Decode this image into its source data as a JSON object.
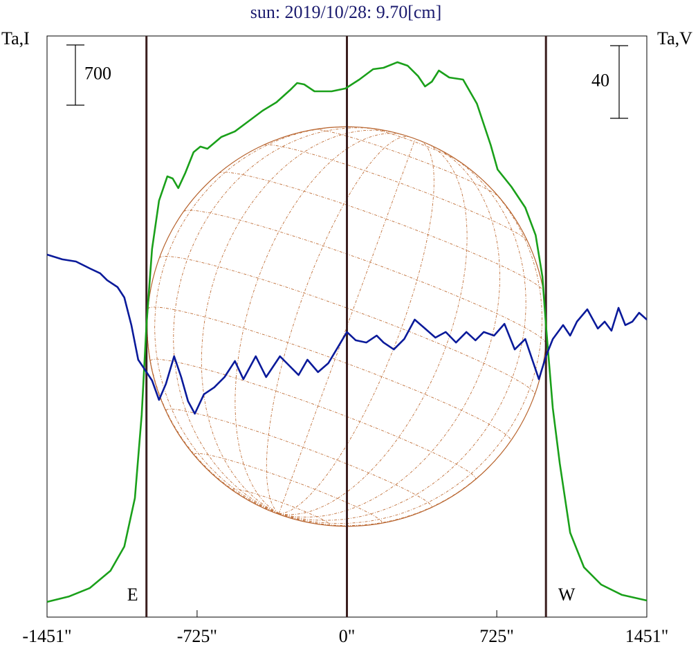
{
  "chart_data": {
    "type": "line",
    "title": "sun: 2019/10/28: 9.70[cm]",
    "ylabel": "Ta,I",
    "y2label": "Ta,V",
    "xlim": [
      -1451,
      1451
    ],
    "xticks": [
      {
        "value": -1451,
        "label": "-1451\""
      },
      {
        "value": -725,
        "label": "-725\""
      },
      {
        "value": 0,
        "label": "0\""
      },
      {
        "value": 725,
        "label": "725\""
      },
      {
        "value": 1451,
        "label": "1451\""
      }
    ],
    "ylim": [
      0,
      6760
    ],
    "y2lim": [
      -160,
      160
    ],
    "scale_bars": [
      {
        "value": 700,
        "axis": "y"
      },
      {
        "value": 40,
        "axis": "y2"
      }
    ],
    "markers": [
      {
        "x": -970,
        "label": "E"
      },
      {
        "x": 0
      },
      {
        "x": 963,
        "label": "W"
      }
    ],
    "series": [
      {
        "name": "I",
        "color": "#1aa01a",
        "x": [
          -1451,
          -1344,
          -1244,
          -1144,
          -1077,
          -1026,
          -993,
          -970,
          -943,
          -909,
          -869,
          -843,
          -816,
          -782,
          -742,
          -709,
          -675,
          -608,
          -542,
          -475,
          -408,
          -341,
          -274,
          -241,
          -207,
          -157,
          -74,
          -7,
          60,
          127,
          177,
          244,
          294,
          344,
          378,
          411,
          445,
          495,
          562,
          629,
          696,
          729,
          796,
          863,
          913,
          946,
          963,
          996,
          1030,
          1080,
          1147,
          1230,
          1331,
          1451
        ],
        "values": [
          177,
          241,
          338,
          539,
          821,
          1384,
          2350,
          3396,
          4282,
          4845,
          5127,
          5102,
          4990,
          5167,
          5408,
          5473,
          5448,
          5585,
          5650,
          5770,
          5891,
          5988,
          6133,
          6213,
          6197,
          6116,
          6116,
          6149,
          6253,
          6374,
          6390,
          6455,
          6414,
          6294,
          6173,
          6229,
          6358,
          6277,
          6253,
          5972,
          5489,
          5207,
          5006,
          4764,
          4443,
          3960,
          3396,
          2430,
          1787,
          982,
          579,
          378,
          258,
          193
        ]
      },
      {
        "name": "V",
        "color": "#0a1a9a",
        "axis": "y2",
        "x": [
          -1451,
          -1377,
          -1311,
          -1244,
          -1194,
          -1160,
          -1110,
          -1077,
          -1043,
          -1010,
          -976,
          -943,
          -909,
          -876,
          -836,
          -802,
          -769,
          -736,
          -692,
          -642,
          -592,
          -542,
          -501,
          -441,
          -391,
          -324,
          -274,
          -234,
          -191,
          -140,
          -90,
          -40,
          0,
          43,
          94,
          144,
          177,
          227,
          277,
          328,
          378,
          428,
          478,
          528,
          578,
          622,
          662,
          712,
          762,
          812,
          863,
          929,
          963,
          996,
          1046,
          1080,
          1113,
          1163,
          1214,
          1247,
          1280,
          1314,
          1347,
          1381,
          1414,
          1451
        ],
        "values": [
          39.6,
          37,
          35.8,
          32,
          29.3,
          25.5,
          21.7,
          16,
          0.8,
          -18.3,
          -24,
          -29.7,
          -40.4,
          -31.6,
          -16.4,
          -27.8,
          -41.1,
          -48,
          -37.3,
          -33.5,
          -27.8,
          -19,
          -29,
          -16.4,
          -27.8,
          -16.4,
          -22.1,
          -26.7,
          -18.3,
          -25.1,
          -20.2,
          -10.7,
          -3,
          -7.6,
          -8.8,
          -5,
          -8.8,
          -12.6,
          -6.9,
          3.8,
          -1.1,
          -6.1,
          -3,
          -8.8,
          -3,
          -7.6,
          -3,
          -5,
          1.5,
          -12.6,
          -6.9,
          -29,
          -16.4,
          -6.9,
          0.8,
          -5,
          2.7,
          9.5,
          -1.1,
          2.7,
          -2.3,
          10.3,
          0.8,
          2.7,
          7.6,
          3.8
        ]
      }
    ]
  }
}
